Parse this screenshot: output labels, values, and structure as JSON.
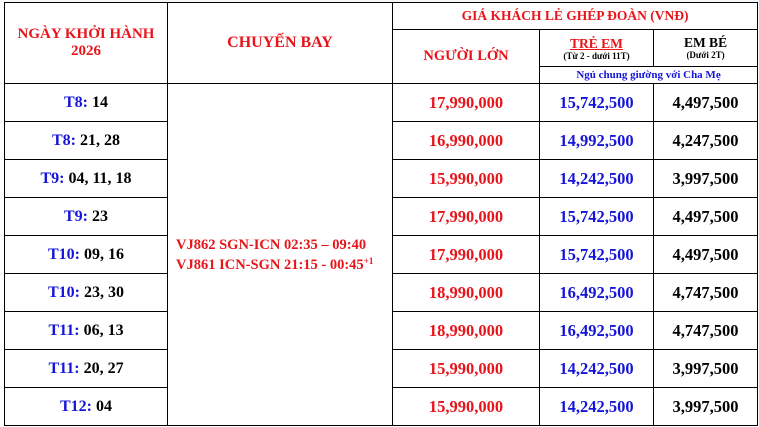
{
  "header": {
    "departure_title_line1": "NGÀY KHỞI HÀNH",
    "departure_title_line2": "2026",
    "flight_title": "CHUYẾN BAY",
    "group_price_title": "GIÁ KHÁCH LẺ GHÉP ĐOÀN (VNĐ)",
    "adult_label": "NGƯỜI LỚN",
    "child_label": "TRẺ EM",
    "child_sub": "(Từ 2 - dưới 11T)",
    "infant_label": "EM BÉ",
    "infant_sub": "(Dưới 2T)",
    "shared_bed_note": "Ngủ chung giường với Cha Mẹ"
  },
  "flight": {
    "line1": "VJ862 SGN-ICN 02:35 – 09:40",
    "line2": "VJ861 ICN-SGN 21:15 - 00:45",
    "line2_sup": "+1"
  },
  "rows": [
    {
      "month": "T8:",
      "days": " 14",
      "adult": "17,990,000",
      "child": "15,742,500",
      "infant": "4,497,500"
    },
    {
      "month": "T8:",
      "days": " 21, 28",
      "adult": "16,990,000",
      "child": "14,992,500",
      "infant": "4,247,500"
    },
    {
      "month": "T9:",
      "days": " 04, 11, 18",
      "adult": "15,990,000",
      "child": "14,242,500",
      "infant": "3,997,500"
    },
    {
      "month": "T9:",
      "days": " 23",
      "adult": "17,990,000",
      "child": "15,742,500",
      "infant": "4,497,500"
    },
    {
      "month": "T10:",
      "days": " 09, 16",
      "adult": "17,990,000",
      "child": "15,742,500",
      "infant": "4,497,500"
    },
    {
      "month": "T10:",
      "days": " 23, 30",
      "adult": "18,990,000",
      "child": "16,492,500",
      "infant": "4,747,500"
    },
    {
      "month": "T11:",
      "days": " 06, 13",
      "adult": "18,990,000",
      "child": "16,492,500",
      "infant": "4,747,500"
    },
    {
      "month": "T11:",
      "days": " 20, 27",
      "adult": "15,990,000",
      "child": "14,242,500",
      "infant": "3,997,500"
    },
    {
      "month": "T12:",
      "days": " 04",
      "adult": "15,990,000",
      "child": "14,242,500",
      "infant": "3,997,500"
    }
  ]
}
